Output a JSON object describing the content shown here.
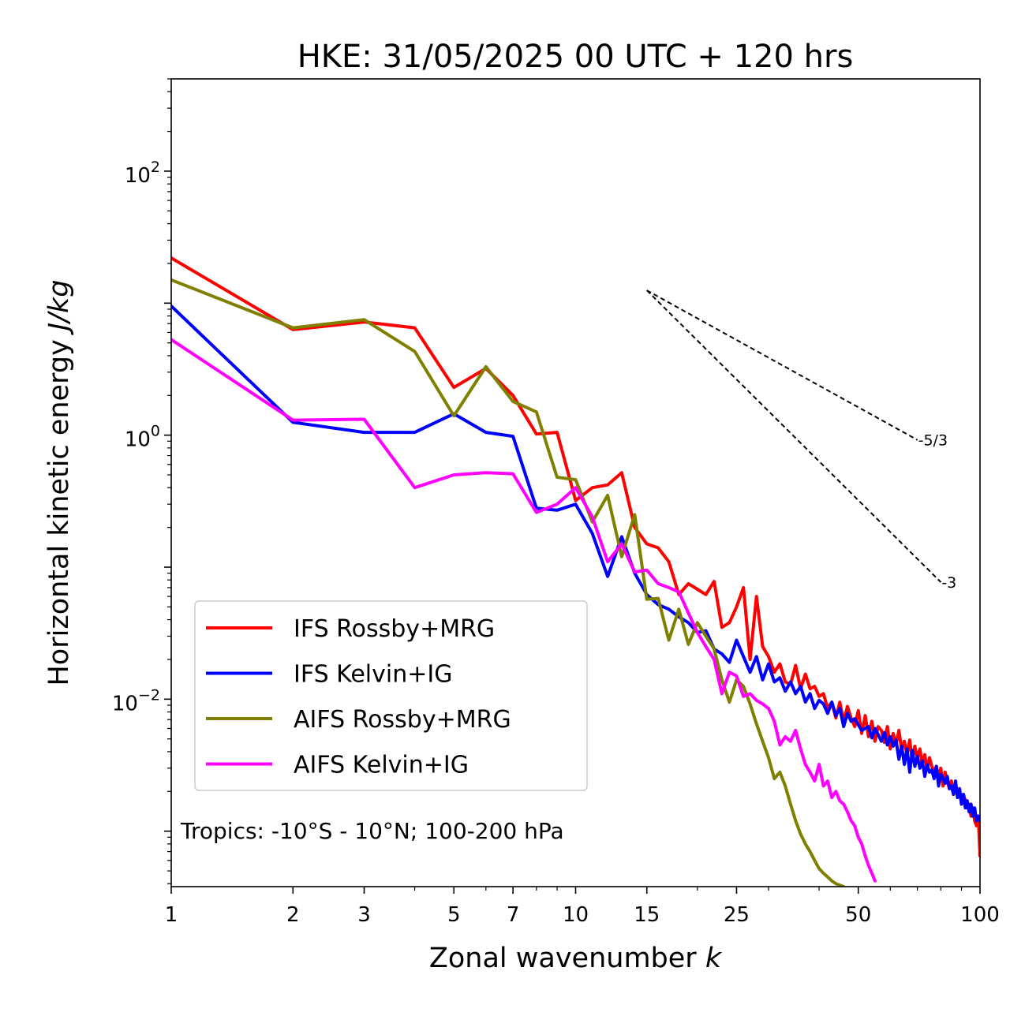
{
  "chart_data": {
    "type": "line",
    "title": "HKE: 31/05/2025 00 UTC + 120 hrs",
    "xlabel_text": "Zonal wavenumber ",
    "xlabel_var": "k",
    "ylabel_text": "Horizontal kinetic energy ",
    "ylabel_unit": "J/kg",
    "x_scale": "log",
    "y_scale": "log",
    "xlim": [
      1,
      100
    ],
    "ylim": [
      0.00038,
      500
    ],
    "x_ticks": [
      {
        "value": 1,
        "label": "1"
      },
      {
        "value": 2,
        "label": "2"
      },
      {
        "value": 3,
        "label": "3"
      },
      {
        "value": 5,
        "label": "5"
      },
      {
        "value": 7,
        "label": "7"
      },
      {
        "value": 10,
        "label": "10"
      },
      {
        "value": 15,
        "label": "15"
      },
      {
        "value": 25,
        "label": "25"
      },
      {
        "value": 50,
        "label": "50"
      },
      {
        "value": 100,
        "label": "100"
      }
    ],
    "y_ticks": [
      {
        "value": 100,
        "base": "10",
        "exp": "2"
      },
      {
        "value": 1,
        "base": "10",
        "exp": "0"
      },
      {
        "value": 0.01,
        "base": "10",
        "exp": "−2"
      }
    ],
    "grid": false,
    "legend_position": "lower-left",
    "annotation": "Tropics: -10°S - 10°N; 100-200 hPa",
    "reference_lines": [
      {
        "label": "-5/3",
        "x": [
          15,
          70
        ],
        "y": [
          12.5,
          0.92
        ]
      },
      {
        "label": "-3",
        "x": [
          15,
          80
        ],
        "y": [
          12.5,
          0.077
        ]
      }
    ],
    "series": [
      {
        "name": "IFS Rossby+MRG",
        "color": "#ff0000",
        "x": [
          1,
          2,
          3,
          4,
          5,
          6,
          7,
          8,
          9,
          10,
          11,
          12,
          13,
          14,
          15,
          16,
          17,
          18,
          19,
          20,
          21,
          22,
          23,
          24,
          25,
          26,
          27,
          28,
          29,
          30,
          31,
          32,
          33,
          34,
          35,
          36,
          37,
          38,
          39,
          40,
          41,
          42,
          43,
          44,
          45,
          46,
          47,
          48,
          49,
          50,
          51,
          52,
          53,
          54,
          55,
          56,
          57,
          58,
          59,
          60,
          61,
          62,
          63,
          64,
          65,
          66,
          67,
          68,
          69,
          70,
          71,
          72,
          73,
          74,
          75,
          76,
          77,
          78,
          79,
          80,
          81,
          82,
          83,
          84,
          85,
          86,
          87,
          88,
          89,
          90,
          91,
          92,
          93,
          94,
          95,
          96,
          97,
          98,
          99,
          100
        ],
        "y": [
          22,
          6.3,
          7.2,
          6.5,
          2.3,
          3.2,
          2.0,
          1.02,
          1.05,
          0.32,
          0.4,
          0.42,
          0.52,
          0.2,
          0.15,
          0.14,
          0.11,
          0.062,
          0.075,
          0.068,
          0.062,
          0.078,
          0.035,
          0.038,
          0.05,
          0.07,
          0.02,
          0.06,
          0.025,
          0.021,
          0.016,
          0.0185,
          0.0135,
          0.013,
          0.018,
          0.012,
          0.0155,
          0.012,
          0.0125,
          0.0105,
          0.011,
          0.0085,
          0.0095,
          0.0072,
          0.0095,
          0.0068,
          0.0088,
          0.0072,
          0.0062,
          0.0082,
          0.0055,
          0.0075,
          0.0052,
          0.0068,
          0.0048,
          0.0062,
          0.0058,
          0.0047,
          0.0062,
          0.0042,
          0.0055,
          0.0045,
          0.0058,
          0.0041,
          0.0048,
          0.0038,
          0.0049,
          0.0034,
          0.0044,
          0.0036,
          0.0042,
          0.0032,
          0.0038,
          0.0029,
          0.0036,
          0.0031,
          0.0028,
          0.0031,
          0.0025,
          0.003,
          0.0022,
          0.0028,
          0.0024,
          0.0021,
          0.0024,
          0.0019,
          0.0022,
          0.0018,
          0.0021,
          0.0016,
          0.0019,
          0.0017,
          0.0015,
          0.0016,
          0.0013,
          0.0015,
          0.0012,
          0.0011,
          0.0013,
          0.00065
        ]
      },
      {
        "name": "IFS Kelvin+IG",
        "color": "#0000ff",
        "x": [
          1,
          2,
          3,
          4,
          5,
          6,
          7,
          8,
          9,
          10,
          11,
          12,
          13,
          14,
          15,
          16,
          17,
          18,
          19,
          20,
          21,
          22,
          23,
          24,
          25,
          26,
          27,
          28,
          29,
          30,
          31,
          32,
          33,
          34,
          35,
          36,
          37,
          38,
          39,
          40,
          41,
          42,
          43,
          44,
          45,
          46,
          47,
          48,
          49,
          50,
          51,
          52,
          53,
          54,
          55,
          56,
          57,
          58,
          59,
          60,
          61,
          62,
          63,
          64,
          65,
          66,
          67,
          68,
          69,
          70,
          71,
          72,
          73,
          74,
          75,
          76,
          77,
          78,
          79,
          80,
          81,
          82,
          83,
          84,
          85,
          86,
          87,
          88,
          89,
          90,
          91,
          92,
          93,
          94,
          95,
          96,
          97,
          98,
          99,
          100
        ],
        "y": [
          9.5,
          1.25,
          1.05,
          1.05,
          1.45,
          1.05,
          0.98,
          0.28,
          0.27,
          0.3,
          0.18,
          0.085,
          0.17,
          0.09,
          0.062,
          0.052,
          0.048,
          0.042,
          0.038,
          0.032,
          0.033,
          0.024,
          0.022,
          0.019,
          0.028,
          0.021,
          0.016,
          0.021,
          0.014,
          0.0185,
          0.0135,
          0.0145,
          0.0115,
          0.0135,
          0.011,
          0.0125,
          0.0095,
          0.011,
          0.0085,
          0.0098,
          0.0092,
          0.0078,
          0.0095,
          0.0075,
          0.0085,
          0.0062,
          0.0078,
          0.0068,
          0.0071,
          0.0064,
          0.0058,
          0.006,
          0.0062,
          0.0051,
          0.006,
          0.0054,
          0.0048,
          0.0056,
          0.0045,
          0.0052,
          0.0044,
          0.0049,
          0.0035,
          0.0044,
          0.0032,
          0.0042,
          0.0028,
          0.0041,
          0.0031,
          0.0037,
          0.003,
          0.0034,
          0.0026,
          0.0032,
          0.0028,
          0.0029,
          0.0025,
          0.0031,
          0.0022,
          0.0027,
          0.0025,
          0.0023,
          0.0026,
          0.0021,
          0.0022,
          0.0019,
          0.0024,
          0.0018,
          0.0021,
          0.0016,
          0.0019,
          0.0015,
          0.0017,
          0.0014,
          0.0016,
          0.0013,
          0.0015,
          0.0012,
          0.0013,
          0.0012
        ]
      },
      {
        "name": "AIFS Rossby+MRG",
        "color": "#808000",
        "x": [
          1,
          2,
          3,
          4,
          5,
          6,
          7,
          8,
          9,
          10,
          11,
          12,
          13,
          14,
          15,
          16,
          17,
          18,
          19,
          20,
          21,
          22,
          23,
          24,
          25,
          26,
          27,
          28,
          29,
          30,
          31,
          32,
          33,
          34,
          35,
          36,
          37,
          38,
          39,
          40,
          41,
          42,
          43,
          44,
          45,
          46
        ],
        "y": [
          15,
          6.5,
          7.5,
          4.3,
          1.4,
          3.3,
          1.8,
          1.5,
          0.48,
          0.46,
          0.22,
          0.35,
          0.12,
          0.25,
          0.057,
          0.058,
          0.028,
          0.048,
          0.026,
          0.038,
          0.03,
          0.024,
          0.014,
          0.0095,
          0.014,
          0.0125,
          0.0092,
          0.0065,
          0.0048,
          0.0036,
          0.0025,
          0.0028,
          0.0022,
          0.0016,
          0.0012,
          0.00095,
          0.0008,
          0.0007,
          0.0006,
          0.00052,
          0.00048,
          0.00045,
          0.00042,
          0.0004,
          0.00039,
          0.00038
        ]
      },
      {
        "name": "AIFS Kelvin+IG",
        "color": "#ff00ff",
        "x": [
          1,
          2,
          3,
          4,
          5,
          6,
          7,
          8,
          9,
          10,
          11,
          12,
          13,
          14,
          15,
          16,
          17,
          18,
          19,
          20,
          21,
          22,
          23,
          24,
          25,
          26,
          27,
          28,
          29,
          30,
          31,
          32,
          33,
          34,
          35,
          36,
          37,
          38,
          39,
          40,
          41,
          42,
          43,
          44,
          45,
          46,
          47,
          48,
          49,
          50,
          51,
          52,
          53,
          54,
          55
        ],
        "y": [
          5.3,
          1.3,
          1.32,
          0.4,
          0.5,
          0.52,
          0.51,
          0.26,
          0.3,
          0.4,
          0.24,
          0.11,
          0.15,
          0.092,
          0.095,
          0.075,
          0.07,
          0.065,
          0.045,
          0.032,
          0.025,
          0.02,
          0.011,
          0.016,
          0.015,
          0.0105,
          0.011,
          0.0098,
          0.0092,
          0.0085,
          0.0068,
          0.0045,
          0.0052,
          0.0048,
          0.0058,
          0.0042,
          0.0032,
          0.0028,
          0.0024,
          0.0032,
          0.0022,
          0.0024,
          0.0018,
          0.002,
          0.0017,
          0.0016,
          0.0014,
          0.0012,
          0.0011,
          0.0009,
          0.0008,
          0.00065,
          0.00055,
          0.00048,
          0.00042
        ]
      }
    ]
  }
}
